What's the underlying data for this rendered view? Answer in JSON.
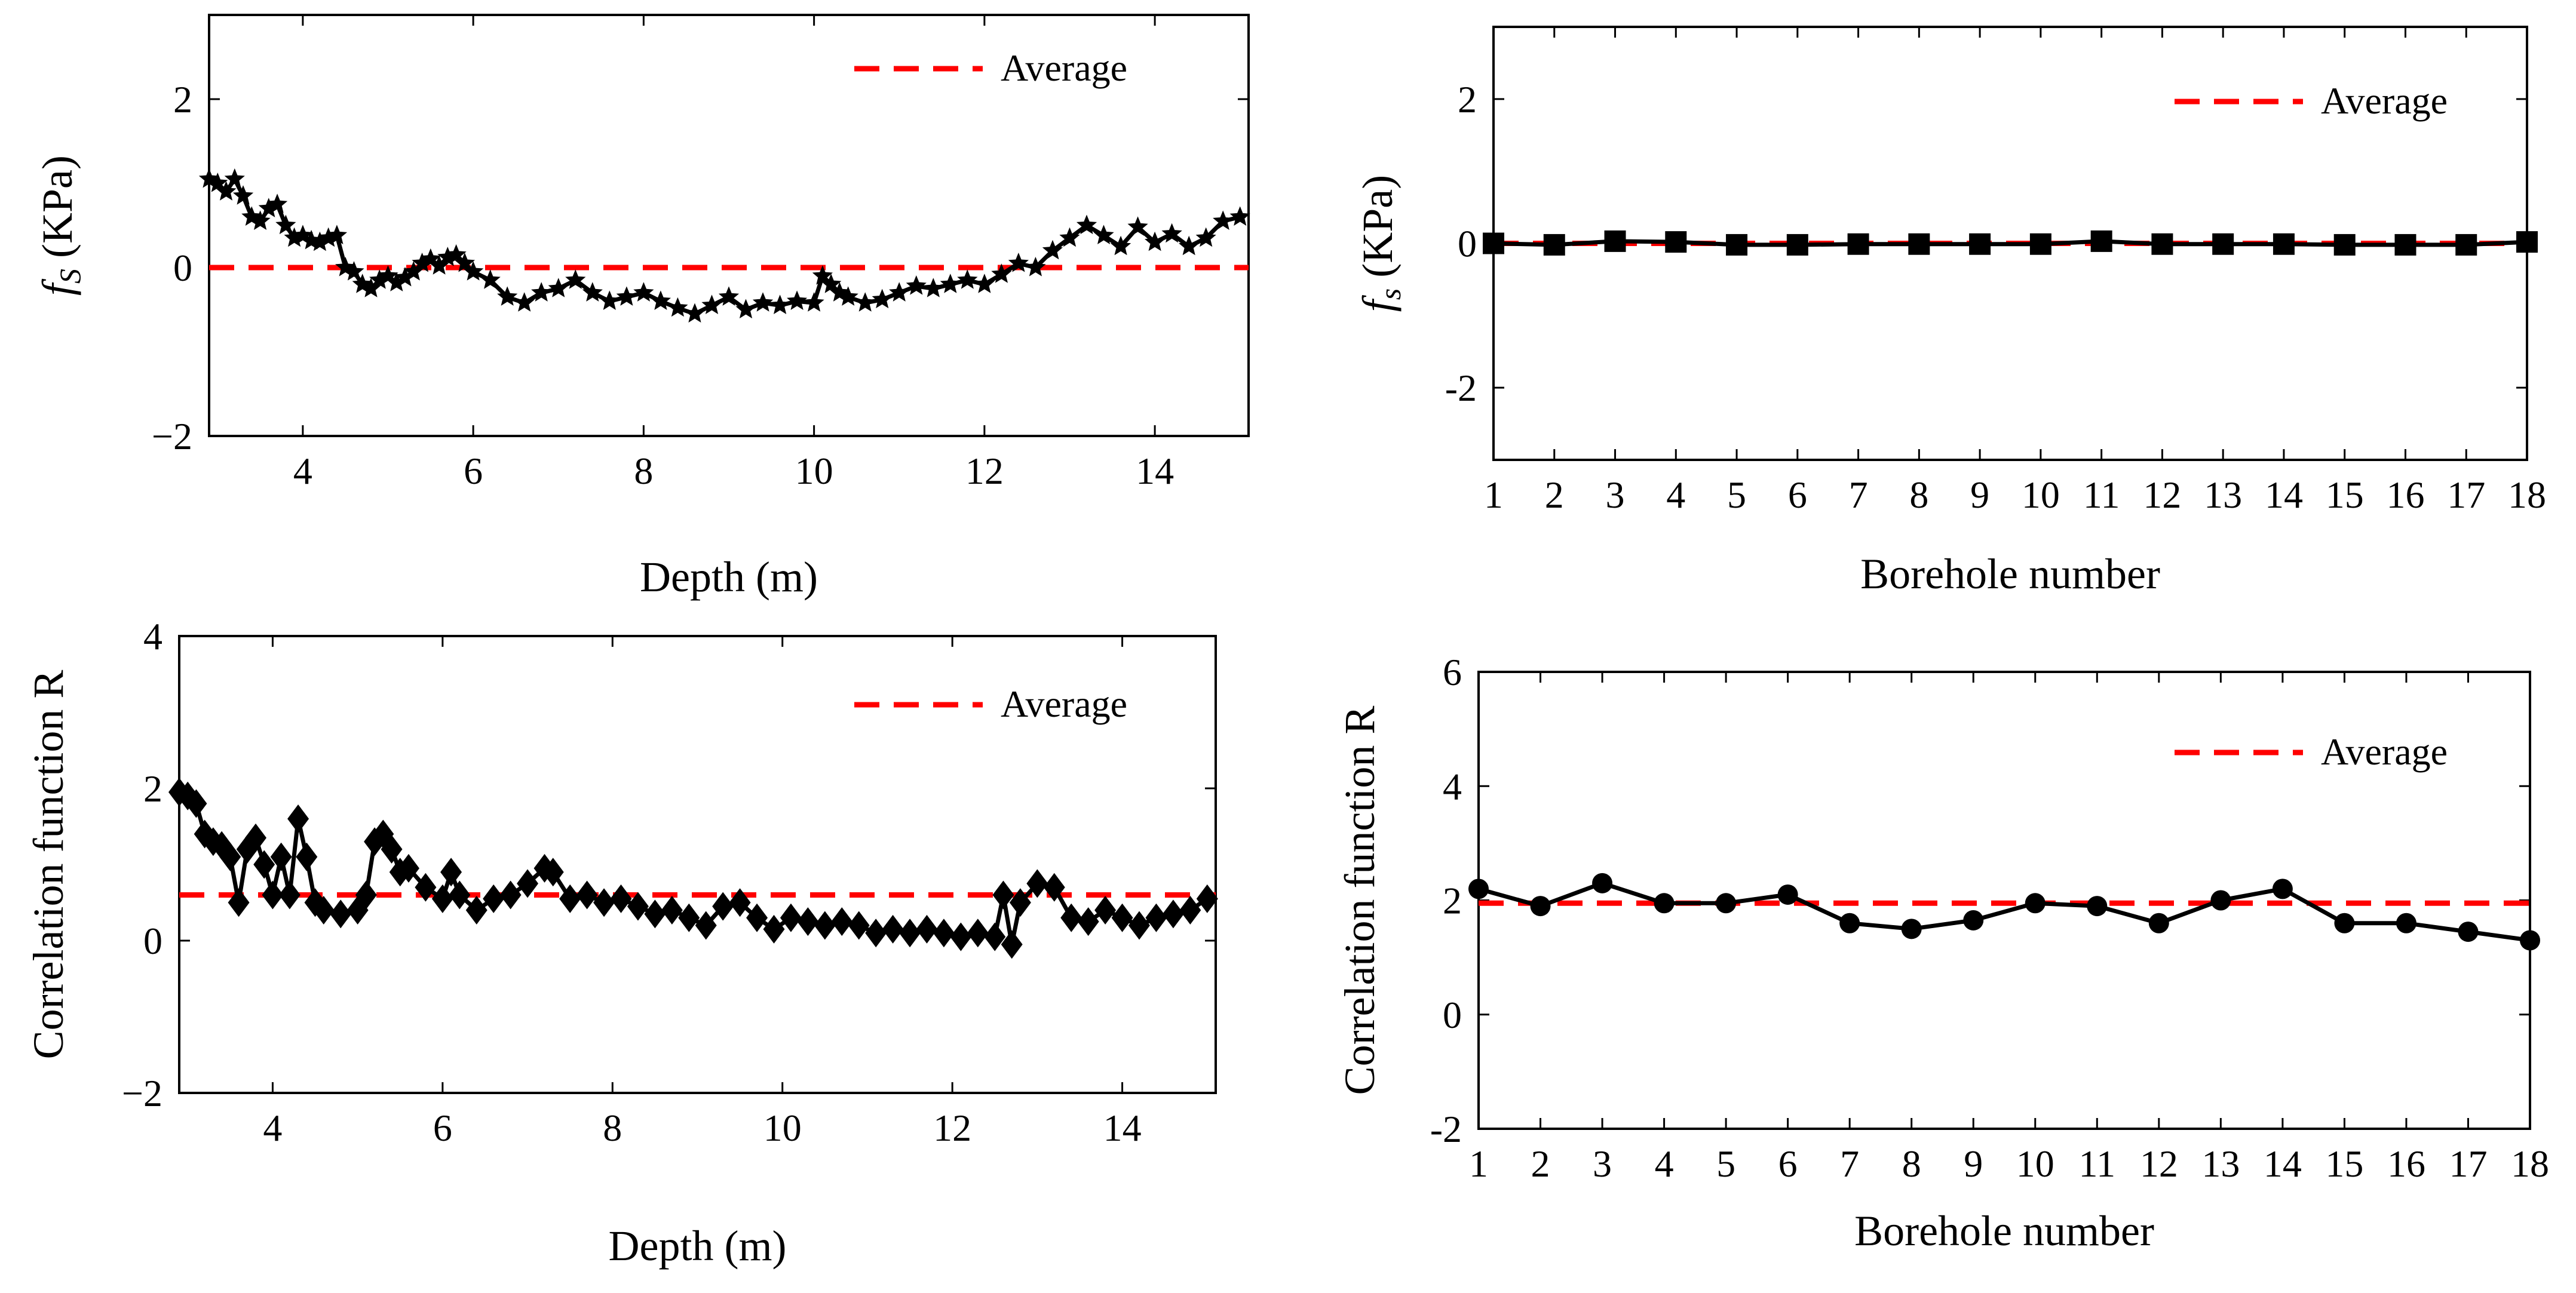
{
  "figure_title": "",
  "colors": {
    "series": "#000000",
    "average": "#ff0000"
  },
  "chart_data": [
    {
      "type": "line",
      "panel": "top-left",
      "title": "",
      "xlabel": "Depth (m)",
      "ylabel_main": "f",
      "ylabel_sub": "S",
      "ylabel_rest": " (KPa)",
      "xlim": [
        2.9,
        15.1
      ],
      "ylim": [
        -2,
        3
      ],
      "xticks": [
        4,
        6,
        8,
        10,
        12,
        14
      ],
      "yticks": [
        -2,
        0,
        2
      ],
      "ytick_labels": [
        "−2",
        "0",
        "2"
      ],
      "marker": "star",
      "legend": {
        "label": "Average",
        "position": "top-right"
      },
      "average": 0.0,
      "series": [
        {
          "name": "f_S",
          "x": [
            2.9,
            3.0,
            3.1,
            3.2,
            3.3,
            3.4,
            3.5,
            3.6,
            3.7,
            3.8,
            3.9,
            4.0,
            4.1,
            4.2,
            4.3,
            4.4,
            4.5,
            4.6,
            4.7,
            4.8,
            4.9,
            5.0,
            5.1,
            5.2,
            5.3,
            5.4,
            5.5,
            5.6,
            5.7,
            5.8,
            5.9,
            6.0,
            6.2,
            6.4,
            6.6,
            6.8,
            7.0,
            7.2,
            7.4,
            7.6,
            7.8,
            8.0,
            8.2,
            8.4,
            8.6,
            8.8,
            9.0,
            9.2,
            9.4,
            9.6,
            9.8,
            10.0,
            10.1,
            10.2,
            10.3,
            10.4,
            10.6,
            10.8,
            11.0,
            11.2,
            11.4,
            11.6,
            11.8,
            12.0,
            12.2,
            12.4,
            12.6,
            12.8,
            13.0,
            13.2,
            13.4,
            13.6,
            13.8,
            14.0,
            14.2,
            14.4,
            14.6,
            14.8,
            15.0
          ],
          "values": [
            1.05,
            1.0,
            0.9,
            1.05,
            0.85,
            0.6,
            0.55,
            0.7,
            0.75,
            0.5,
            0.35,
            0.38,
            0.32,
            0.3,
            0.35,
            0.38,
            0.0,
            -0.05,
            -0.2,
            -0.25,
            -0.15,
            -0.1,
            -0.18,
            -0.12,
            -0.05,
            0.05,
            0.1,
            0.02,
            0.12,
            0.15,
            0.05,
            -0.05,
            -0.15,
            -0.35,
            -0.42,
            -0.3,
            -0.25,
            -0.15,
            -0.3,
            -0.4,
            -0.35,
            -0.3,
            -0.4,
            -0.48,
            -0.55,
            -0.45,
            -0.35,
            -0.5,
            -0.42,
            -0.45,
            -0.4,
            -0.42,
            -0.1,
            -0.2,
            -0.3,
            -0.35,
            -0.42,
            -0.38,
            -0.3,
            -0.22,
            -0.25,
            -0.2,
            -0.15,
            -0.2,
            -0.08,
            0.05,
            0.0,
            0.2,
            0.35,
            0.5,
            0.38,
            0.25,
            0.48,
            0.3,
            0.4,
            0.25,
            0.35,
            0.55,
            0.6
          ]
        }
      ]
    },
    {
      "type": "line",
      "panel": "top-right",
      "title": "",
      "xlabel": "Borehole number",
      "ylabel_main": "f",
      "ylabel_sub": "s",
      "ylabel_rest": " (KPa)",
      "xlim": [
        1,
        18
      ],
      "ylim": [
        -3,
        3
      ],
      "xticks": [
        1,
        2,
        3,
        4,
        5,
        6,
        7,
        8,
        9,
        10,
        11,
        12,
        13,
        14,
        15,
        16,
        17,
        18
      ],
      "yticks": [
        -2,
        0,
        2
      ],
      "ytick_labels": [
        "-2",
        "0",
        "2"
      ],
      "marker": "square",
      "legend": {
        "label": "Average",
        "position": "top-right"
      },
      "average": 0.0,
      "series": [
        {
          "name": "f_s",
          "x": [
            1,
            2,
            3,
            4,
            5,
            6,
            7,
            8,
            9,
            10,
            11,
            12,
            13,
            14,
            15,
            16,
            17,
            18
          ],
          "values": [
            0.0,
            -0.02,
            0.03,
            0.02,
            -0.02,
            -0.02,
            -0.01,
            -0.01,
            -0.01,
            -0.01,
            0.03,
            -0.01,
            -0.01,
            -0.01,
            -0.02,
            -0.02,
            -0.02,
            0.02
          ]
        }
      ]
    },
    {
      "type": "line",
      "panel": "bottom-left",
      "title": "",
      "xlabel": "Depth (m)",
      "ylabel": "Correlation function R",
      "xlim": [
        2.9,
        15.1
      ],
      "ylim": [
        -2,
        4
      ],
      "xticks": [
        4,
        6,
        8,
        10,
        12,
        14
      ],
      "yticks": [
        -2,
        0,
        2,
        4
      ],
      "ytick_labels": [
        "−2",
        "0",
        "2",
        "4"
      ],
      "marker": "diamond",
      "legend": {
        "label": "Average",
        "position": "top-right"
      },
      "average": 0.6,
      "series": [
        {
          "name": "R",
          "x": [
            2.9,
            3.0,
            3.1,
            3.2,
            3.3,
            3.4,
            3.5,
            3.6,
            3.7,
            3.8,
            3.9,
            4.0,
            4.1,
            4.2,
            4.3,
            4.4,
            4.5,
            4.6,
            4.8,
            5.0,
            5.1,
            5.2,
            5.3,
            5.4,
            5.5,
            5.6,
            5.8,
            6.0,
            6.1,
            6.2,
            6.4,
            6.6,
            6.8,
            7.0,
            7.2,
            7.3,
            7.5,
            7.7,
            7.9,
            8.1,
            8.3,
            8.5,
            8.7,
            8.9,
            9.1,
            9.3,
            9.5,
            9.7,
            9.9,
            10.1,
            10.3,
            10.5,
            10.7,
            10.9,
            11.1,
            11.3,
            11.5,
            11.7,
            11.9,
            12.1,
            12.3,
            12.5,
            12.6,
            12.7,
            12.8,
            13.0,
            13.2,
            13.4,
            13.6,
            13.8,
            14.0,
            14.2,
            14.4,
            14.6,
            14.8,
            15.0
          ],
          "values": [
            1.95,
            1.9,
            1.8,
            1.4,
            1.3,
            1.25,
            1.1,
            0.5,
            1.2,
            1.35,
            1.0,
            0.6,
            1.1,
            0.6,
            1.6,
            1.1,
            0.5,
            0.4,
            0.35,
            0.4,
            0.6,
            1.3,
            1.4,
            1.2,
            0.9,
            0.95,
            0.7,
            0.55,
            0.9,
            0.6,
            0.4,
            0.55,
            0.6,
            0.75,
            0.95,
            0.9,
            0.55,
            0.6,
            0.5,
            0.55,
            0.45,
            0.35,
            0.4,
            0.3,
            0.2,
            0.45,
            0.5,
            0.3,
            0.15,
            0.3,
            0.25,
            0.2,
            0.25,
            0.2,
            0.1,
            0.15,
            0.1,
            0.15,
            0.1,
            0.05,
            0.1,
            0.05,
            0.6,
            -0.05,
            0.5,
            0.75,
            0.7,
            0.3,
            0.25,
            0.4,
            0.3,
            0.2,
            0.3,
            0.35,
            0.4,
            0.55
          ]
        }
      ]
    },
    {
      "type": "line",
      "panel": "bottom-right",
      "title": "",
      "xlabel": "Borehole number",
      "ylabel": "Correlation function R",
      "xlim": [
        1,
        18
      ],
      "ylim": [
        -2,
        6
      ],
      "xticks": [
        1,
        2,
        3,
        4,
        5,
        6,
        7,
        8,
        9,
        10,
        11,
        12,
        13,
        14,
        15,
        16,
        17,
        18
      ],
      "yticks": [
        -2,
        0,
        2,
        4,
        6
      ],
      "ytick_labels": [
        "-2",
        "0",
        "2",
        "4",
        "6"
      ],
      "marker": "circle",
      "legend": {
        "label": "Average",
        "position": "top-right"
      },
      "average": 1.95,
      "series": [
        {
          "name": "R",
          "x": [
            1,
            2,
            3,
            4,
            5,
            6,
            7,
            8,
            9,
            10,
            11,
            12,
            13,
            14,
            15,
            16,
            17,
            18
          ],
          "values": [
            2.2,
            1.9,
            2.3,
            1.95,
            1.95,
            2.1,
            1.6,
            1.5,
            1.65,
            1.95,
            1.9,
            1.6,
            2.0,
            2.2,
            1.6,
            1.6,
            1.45,
            1.3
          ]
        }
      ]
    }
  ]
}
